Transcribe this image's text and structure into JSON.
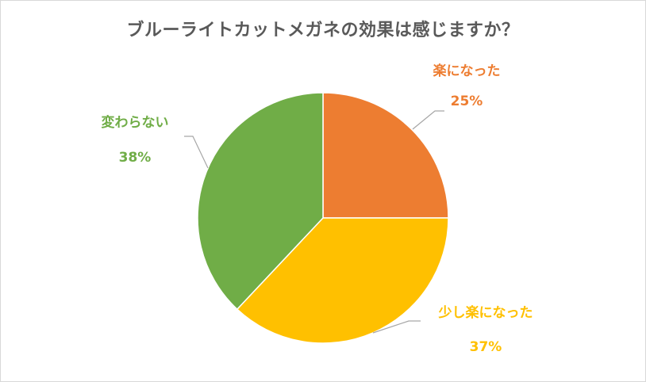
{
  "chart_data": {
    "type": "pie",
    "title": "ブルーライトカットメガネの効果は感じますか？",
    "slices": [
      {
        "label": "楽になった",
        "value": 25,
        "percent_label": "25%",
        "color": "#ED7D31"
      },
      {
        "label": "少し楽になった",
        "value": 37,
        "percent_label": "37%",
        "color": "#FFC000"
      },
      {
        "label": "変わらない",
        "value": 38,
        "percent_label": "38%",
        "color": "#70AD47"
      }
    ],
    "start_angle_deg": 0,
    "direction": "clockwise",
    "legend": "none",
    "leader_line_color": "#A6A6A6"
  }
}
